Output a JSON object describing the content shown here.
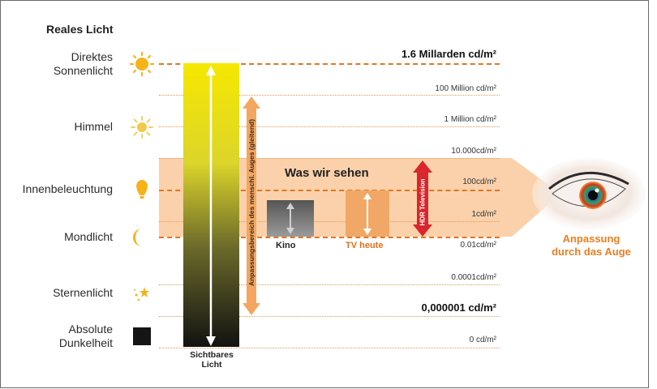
{
  "title": "Reales Licht",
  "categories": [
    {
      "label": "Direktes\nSonnenlicht",
      "icon": "sun-icon"
    },
    {
      "label": "Himmel",
      "icon": "sky-sun-icon"
    },
    {
      "label": "Innenbeleuchtung",
      "icon": "bulb-icon"
    },
    {
      "label": "Mondlicht",
      "icon": "moon-icon"
    },
    {
      "label": "Sternenlicht",
      "icon": "star-icon"
    },
    {
      "label": "Absolute\nDunkelheit",
      "icon": "dark-square-icon"
    }
  ],
  "levels": [
    {
      "value": "1.6 Millarden cd/m²",
      "emphasis": true,
      "style": "dashed"
    },
    {
      "value": "100 Million cd/m²",
      "emphasis": false,
      "style": "dotted"
    },
    {
      "value": "1 Million cd/m²",
      "emphasis": false,
      "style": "dotted"
    },
    {
      "value": "10.000cd/m²",
      "emphasis": false,
      "style": "dotted"
    },
    {
      "value": "100cd/m²",
      "emphasis": false,
      "style": "dashed"
    },
    {
      "value": "1cd/m²",
      "emphasis": false,
      "style": "dotted"
    },
    {
      "value": "0.01cd/m²",
      "emphasis": false,
      "style": "dashed"
    },
    {
      "value": "0.0001cd/m²",
      "emphasis": false,
      "style": "dotted"
    },
    {
      "value": "0,000001 cd/m²",
      "emphasis": true,
      "style": "dotted"
    },
    {
      "value": "0 cd/m²",
      "emphasis": false,
      "style": "dotted"
    }
  ],
  "visible_light_label": "Sichtbares\nLicht",
  "adaptation_label": "Anpassungsbereich des menschl. Auges (gleitend)",
  "seen_band_label": "Was wir sehen",
  "kino_label": "Kino",
  "tv_label": "TV heute",
  "hdr_label": "HDR Television",
  "eye_label": "Anpassung\ndurch das Auge",
  "colors": {
    "accent": "#ee7d1e",
    "dash_line": "#e3761f",
    "band": "#f9c99c",
    "hdr_red": "#d8262c",
    "gradient_top": "#f5e600",
    "gradient_bottom": "#111111"
  }
}
